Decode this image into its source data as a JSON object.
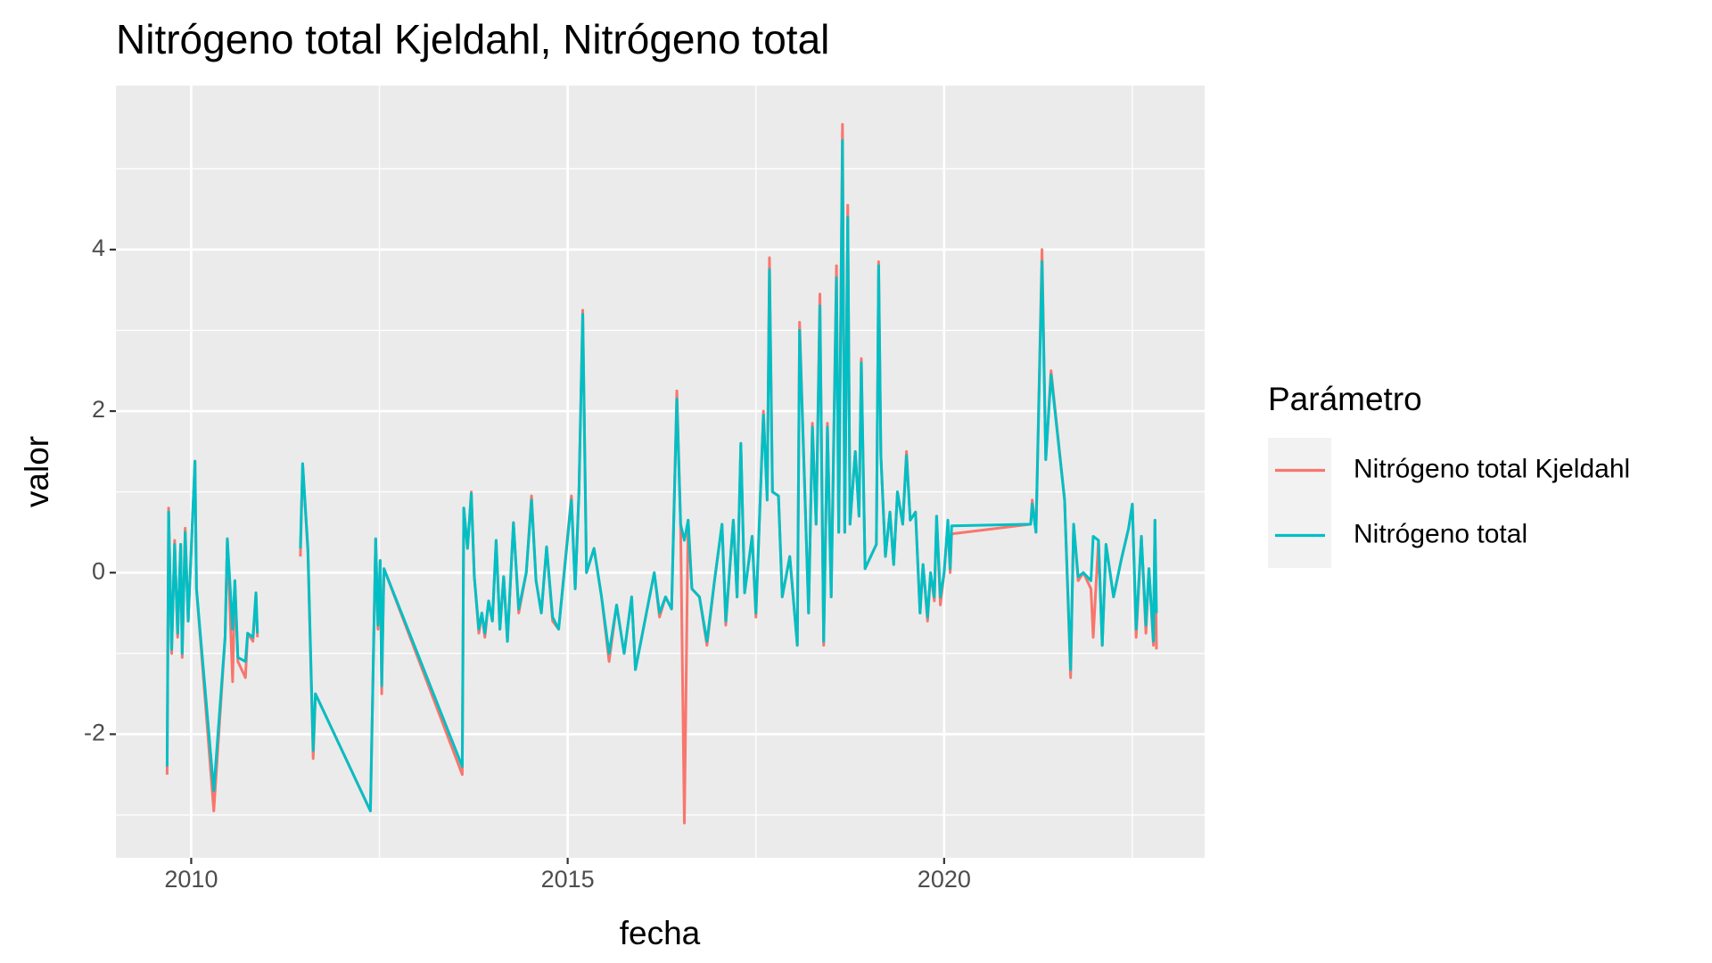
{
  "chart_data": {
    "type": "line",
    "title": "Nitrógeno total Kjeldahl, Nitrógeno total",
    "x_label": "fecha",
    "y_label": "valor",
    "legend_title": "Parámetro",
    "legend_position": "right",
    "grid": true,
    "xlim": [
      2009.0,
      2023.46
    ],
    "ylim": [
      -3.53,
      6.03
    ],
    "xticks": [
      2010,
      2015,
      2020
    ],
    "yticks": [
      -2,
      0,
      2,
      4
    ],
    "x": [
      2009.68,
      2009.7,
      2009.74,
      2009.78,
      2009.82,
      2009.86,
      2009.88,
      2009.92,
      2009.96,
      2010.05,
      2010.07,
      2010.3,
      2010.45,
      2010.48,
      2010.55,
      2010.58,
      2010.62,
      2010.72,
      2010.75,
      2010.82,
      2010.86,
      2010.88,
      2011.2,
      2011.45,
      2011.48,
      2011.55,
      2011.62,
      2011.65,
      2012.38,
      2012.45,
      2012.48,
      2012.51,
      2012.53,
      2012.56,
      2013.6,
      2013.62,
      2013.67,
      2013.72,
      2013.76,
      2013.82,
      2013.86,
      2013.9,
      2013.95,
      2014.0,
      2014.05,
      2014.1,
      2014.15,
      2014.2,
      2014.28,
      2014.35,
      2014.45,
      2014.52,
      2014.58,
      2014.65,
      2014.72,
      2014.8,
      2014.88,
      2015.05,
      2015.1,
      2015.15,
      2015.2,
      2015.25,
      2015.35,
      2015.45,
      2015.55,
      2015.65,
      2015.75,
      2015.85,
      2015.9,
      2016.15,
      2016.22,
      2016.3,
      2016.38,
      2016.45,
      2016.5,
      2016.55,
      2016.6,
      2016.65,
      2016.75,
      2016.85,
      2016.95,
      2017.05,
      2017.1,
      2017.2,
      2017.25,
      2017.3,
      2017.35,
      2017.45,
      2017.5,
      2017.6,
      2017.65,
      2017.68,
      2017.72,
      2017.8,
      2017.85,
      2017.95,
      2018.05,
      2018.08,
      2018.15,
      2018.2,
      2018.25,
      2018.3,
      2018.35,
      2018.4,
      2018.45,
      2018.5,
      2018.57,
      2018.6,
      2018.65,
      2018.68,
      2018.72,
      2018.75,
      2018.82,
      2018.87,
      2018.9,
      2018.95,
      2019.1,
      2019.13,
      2019.16,
      2019.22,
      2019.28,
      2019.33,
      2019.38,
      2019.45,
      2019.5,
      2019.55,
      2019.62,
      2019.68,
      2019.72,
      2019.78,
      2019.82,
      2019.87,
      2019.9,
      2019.95,
      2020.0,
      2020.05,
      2020.08,
      2020.1,
      2021.15,
      2021.17,
      2021.22,
      2021.3,
      2021.35,
      2021.42,
      2021.6,
      2021.68,
      2021.72,
      2021.78,
      2021.85,
      2021.95,
      2021.98,
      2022.05,
      2022.1,
      2022.15,
      2022.25,
      2022.35,
      2022.45,
      2022.5,
      2022.55,
      2022.62,
      2022.68,
      2022.72,
      2022.78,
      2022.8,
      2022.82
    ],
    "series": [
      {
        "name": "Nitrógeno total Kjeldahl",
        "color": "#F8766D",
        "values": [
          -2.5,
          0.8,
          -1.0,
          0.4,
          -0.8,
          0.35,
          -1.05,
          0.55,
          -0.6,
          1.38,
          -0.2,
          -2.95,
          -0.8,
          0.42,
          -1.35,
          -0.1,
          -1.1,
          -1.3,
          -0.75,
          -0.85,
          -0.25,
          -0.8,
          null,
          0.2,
          1.35,
          0.25,
          -2.3,
          -1.5,
          -2.95,
          0.42,
          -0.7,
          0.15,
          -1.5,
          0.05,
          -2.5,
          0.8,
          0.3,
          1.0,
          -0.05,
          -0.75,
          -0.5,
          -0.8,
          -0.35,
          -0.6,
          0.4,
          -0.7,
          -0.05,
          -0.85,
          0.62,
          -0.5,
          0.0,
          0.95,
          -0.1,
          -0.5,
          0.32,
          -0.6,
          -0.7,
          0.95,
          -0.2,
          1.0,
          3.25,
          0.0,
          0.3,
          -0.3,
          -1.1,
          -0.4,
          -1.0,
          -0.3,
          -1.2,
          0.0,
          -0.55,
          -0.3,
          -0.45,
          2.25,
          0.6,
          -3.1,
          0.65,
          -0.2,
          -0.3,
          -0.9,
          -0.1,
          0.6,
          -0.65,
          0.65,
          -0.3,
          1.6,
          -0.25,
          0.45,
          -0.55,
          2.0,
          0.9,
          3.9,
          1.0,
          0.95,
          -0.3,
          0.2,
          -0.9,
          3.1,
          1.0,
          -0.5,
          1.85,
          0.6,
          3.45,
          -0.9,
          1.85,
          -0.3,
          3.8,
          0.5,
          5.55,
          0.5,
          4.55,
          0.6,
          1.5,
          0.7,
          2.65,
          0.05,
          0.35,
          3.85,
          1.45,
          0.2,
          0.75,
          0.1,
          1.0,
          0.6,
          1.5,
          0.65,
          0.75,
          -0.5,
          0.1,
          -0.6,
          0.0,
          -0.35,
          0.7,
          -0.4,
          0.0,
          0.6,
          0.0,
          0.48,
          0.6,
          0.9,
          0.5,
          4.0,
          1.4,
          2.5,
          0.9,
          -1.3,
          0.6,
          -0.1,
          0.0,
          -0.2,
          -0.8,
          0.4,
          -0.9,
          0.35,
          -0.3,
          0.15,
          0.55,
          0.85,
          -0.8,
          0.45,
          -0.75,
          0.05,
          -0.9,
          0.65,
          -0.95
        ]
      },
      {
        "name": "Nitrógeno total",
        "color": "#00BFC4",
        "values": [
          -2.4,
          0.75,
          -0.95,
          0.35,
          -0.75,
          0.35,
          -1.0,
          0.5,
          -0.6,
          1.38,
          -0.2,
          -2.7,
          -0.8,
          0.42,
          -0.7,
          -0.1,
          -1.05,
          -1.1,
          -0.75,
          -0.8,
          -0.25,
          -0.75,
          null,
          0.3,
          1.35,
          0.3,
          -2.2,
          -1.5,
          -2.95,
          0.42,
          -0.65,
          0.15,
          -1.4,
          0.05,
          -2.4,
          0.8,
          0.3,
          0.98,
          -0.05,
          -0.7,
          -0.5,
          -0.75,
          -0.35,
          -0.6,
          0.4,
          -0.7,
          -0.05,
          -0.85,
          0.62,
          -0.45,
          0.0,
          0.9,
          -0.1,
          -0.5,
          0.32,
          -0.55,
          -0.7,
          0.9,
          -0.2,
          1.0,
          3.2,
          0.0,
          0.3,
          -0.3,
          -1.0,
          -0.4,
          -1.0,
          -0.3,
          -1.2,
          0.0,
          -0.5,
          -0.3,
          -0.45,
          2.15,
          0.6,
          0.4,
          0.65,
          -0.2,
          -0.3,
          -0.85,
          -0.1,
          0.6,
          -0.6,
          0.65,
          -0.3,
          1.6,
          -0.25,
          0.45,
          -0.5,
          1.95,
          0.9,
          3.75,
          1.0,
          0.95,
          -0.3,
          0.2,
          -0.9,
          3.0,
          1.0,
          -0.5,
          1.8,
          0.6,
          3.3,
          -0.85,
          1.8,
          -0.3,
          3.65,
          0.5,
          5.35,
          0.5,
          4.4,
          0.6,
          1.5,
          0.7,
          2.6,
          0.05,
          0.35,
          3.8,
          1.45,
          0.2,
          0.75,
          0.1,
          1.0,
          0.6,
          1.45,
          0.65,
          0.75,
          -0.5,
          0.1,
          -0.55,
          0.0,
          -0.3,
          0.7,
          -0.3,
          0.0,
          0.65,
          0.05,
          0.58,
          0.6,
          0.85,
          0.5,
          3.85,
          1.4,
          2.45,
          0.9,
          -1.2,
          0.6,
          -0.05,
          0.0,
          -0.1,
          0.45,
          0.4,
          -0.9,
          0.35,
          -0.3,
          0.15,
          0.55,
          0.85,
          -0.7,
          0.45,
          -0.65,
          0.05,
          -0.85,
          0.65,
          -0.5
        ]
      }
    ]
  }
}
